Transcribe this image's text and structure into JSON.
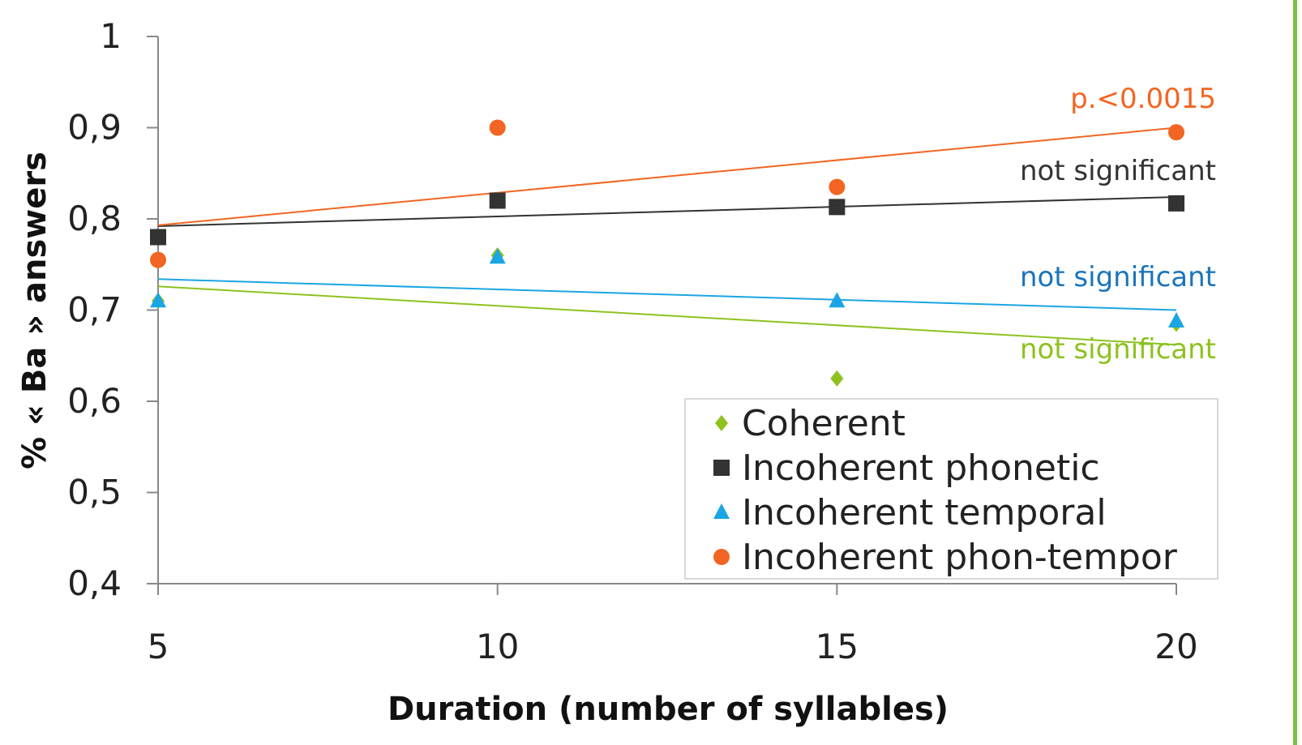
{
  "chart_data": {
    "type": "scatter",
    "title": "",
    "xlabel": "Duration  (number of syllables)",
    "ylabel": "% « Ba » answers",
    "xlim": [
      5,
      20
    ],
    "ylim": [
      0.4,
      1.0
    ],
    "x_ticks": [
      {
        "value": 5,
        "label": "5"
      },
      {
        "value": 10,
        "label": "10"
      },
      {
        "value": 15,
        "label": "15"
      },
      {
        "value": 20,
        "label": "20"
      }
    ],
    "y_ticks": [
      {
        "value": 0.4,
        "label": "0,4"
      },
      {
        "value": 0.5,
        "label": "0,5"
      },
      {
        "value": 0.6,
        "label": "0,6"
      },
      {
        "value": 0.7,
        "label": "0,7"
      },
      {
        "value": 0.8,
        "label": "0,8"
      },
      {
        "value": 0.9,
        "label": "0,9"
      },
      {
        "value": 1.0,
        "label": "1"
      }
    ],
    "grid": false,
    "legend_position": "bottom-right",
    "x": [
      5,
      10,
      15,
      20
    ],
    "series": [
      {
        "name": "Coherent",
        "marker": "diamond",
        "color": "#8dc21f",
        "values": [
          0.71,
          0.76,
          0.625,
          0.685
        ],
        "trend": [
          0.726,
          0.662
        ],
        "annotation": "not significant"
      },
      {
        "name": "Incoherent phonetic",
        "marker": "square",
        "color": "#333333",
        "values": [
          0.78,
          0.82,
          0.813,
          0.817
        ],
        "trend": [
          0.792,
          0.824
        ],
        "annotation": "not significant"
      },
      {
        "name": "Incoherent temporal",
        "marker": "triangle",
        "color": "#1aa6e4",
        "values": [
          0.71,
          0.758,
          0.71,
          0.688
        ],
        "trend": [
          0.734,
          0.7
        ],
        "annotation": "not significant"
      },
      {
        "name": "Incoherent phon-tempor",
        "marker": "circle",
        "color": "#f26522",
        "values": [
          0.755,
          0.9,
          0.835,
          0.895
        ],
        "trend": [
          0.793,
          0.9
        ],
        "annotation": "p.<0.0015"
      }
    ],
    "annotation_colors": {
      "Coherent": "#8dc21f",
      "Incoherent phonetic": "#333333",
      "Incoherent temporal": "#1b75bb",
      "Incoherent phon-tempor": "#f26522"
    }
  }
}
